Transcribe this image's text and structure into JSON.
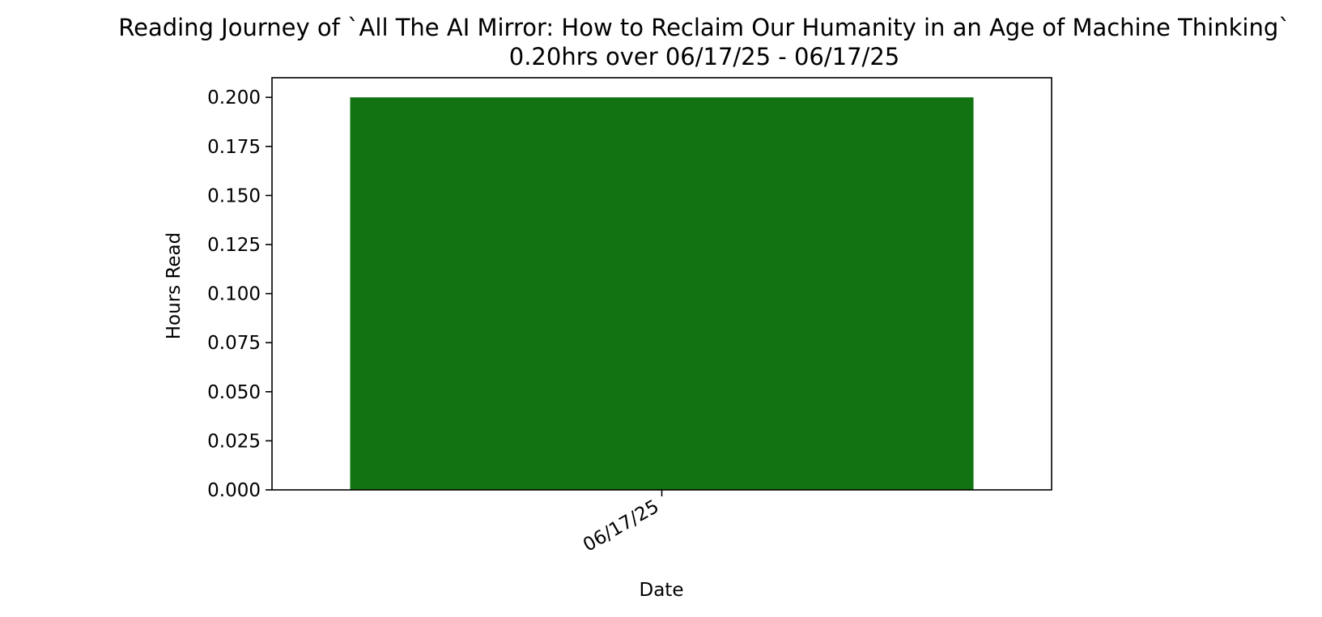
{
  "chart_data": {
    "type": "bar",
    "title": "Reading Journey of `All The AI Mirror: How to Reclaim Our Humanity in an Age of Machine Thinking`",
    "subtitle": "0.20hrs over 06/17/25 - 06/17/25",
    "xlabel": "Date",
    "ylabel": "Hours Read",
    "categories": [
      "06/17/25"
    ],
    "values": [
      0.2
    ],
    "ylim": [
      0,
      0.21
    ],
    "yticks": [
      "0.000",
      "0.025",
      "0.050",
      "0.075",
      "0.100",
      "0.125",
      "0.150",
      "0.175",
      "0.200"
    ],
    "grid": false,
    "legend": "none",
    "colors": {
      "bar": "#117311",
      "axes": "#000000",
      "background": "#ffffff"
    }
  }
}
